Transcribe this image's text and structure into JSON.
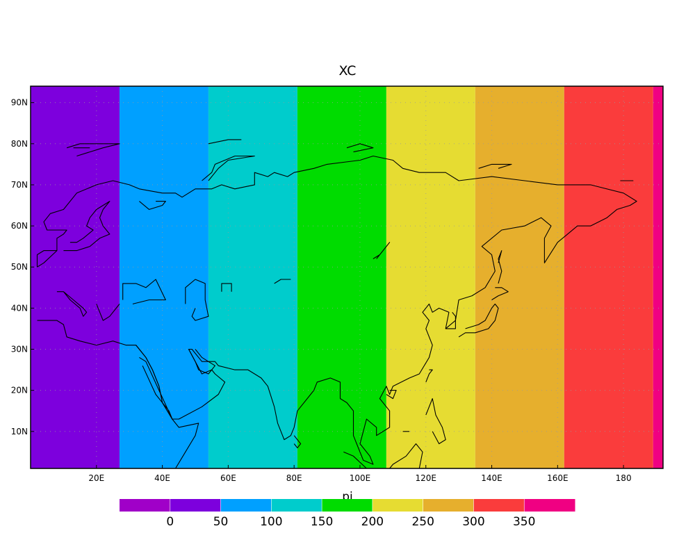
{
  "title": "XC",
  "xlabel": "pi",
  "projection": "cylindrical equidistant",
  "lon_range": [
    0,
    192
  ],
  "lat_range": [
    1,
    94
  ],
  "grid": true,
  "chart_data": {
    "type": "heatmap",
    "title": "XC",
    "xlabel": "pi",
    "ylabel": "",
    "x_ticks": [
      "20E",
      "40E",
      "60E",
      "80E",
      "100E",
      "120E",
      "140E",
      "160E",
      "180"
    ],
    "y_ticks": [
      "10N",
      "20N",
      "30N",
      "40N",
      "50N",
      "60N",
      "70N",
      "80N",
      "90N"
    ],
    "bands": [
      {
        "lon_start": 0,
        "lon_end": 27,
        "value": 25,
        "color": "#7d00dd"
      },
      {
        "lon_start": 27,
        "lon_end": 54,
        "value": 75,
        "color": "#00a0ff"
      },
      {
        "lon_start": 54,
        "lon_end": 81,
        "value": 125,
        "color": "#00cccc"
      },
      {
        "lon_start": 81,
        "lon_end": 108,
        "value": 175,
        "color": "#00dc00"
      },
      {
        "lon_start": 108,
        "lon_end": 135,
        "value": 225,
        "color": "#e6dc32"
      },
      {
        "lon_start": 135,
        "lon_end": 162,
        "value": 275,
        "color": "#e6af2d"
      },
      {
        "lon_start": 162,
        "lon_end": 189,
        "value": 325,
        "color": "#fa3c3c"
      },
      {
        "lon_start": 189,
        "lon_end": 192,
        "value": 375,
        "color": "#f00082"
      }
    ],
    "colorbar": {
      "labels": [
        "0",
        "50",
        "100",
        "150",
        "200",
        "250",
        "300",
        "350"
      ],
      "colors": [
        "#a000c8",
        "#7d00dd",
        "#00a0ff",
        "#00cccc",
        "#00dc00",
        "#e6dc32",
        "#e6af2d",
        "#fa3c3c",
        "#f00082"
      ]
    }
  }
}
